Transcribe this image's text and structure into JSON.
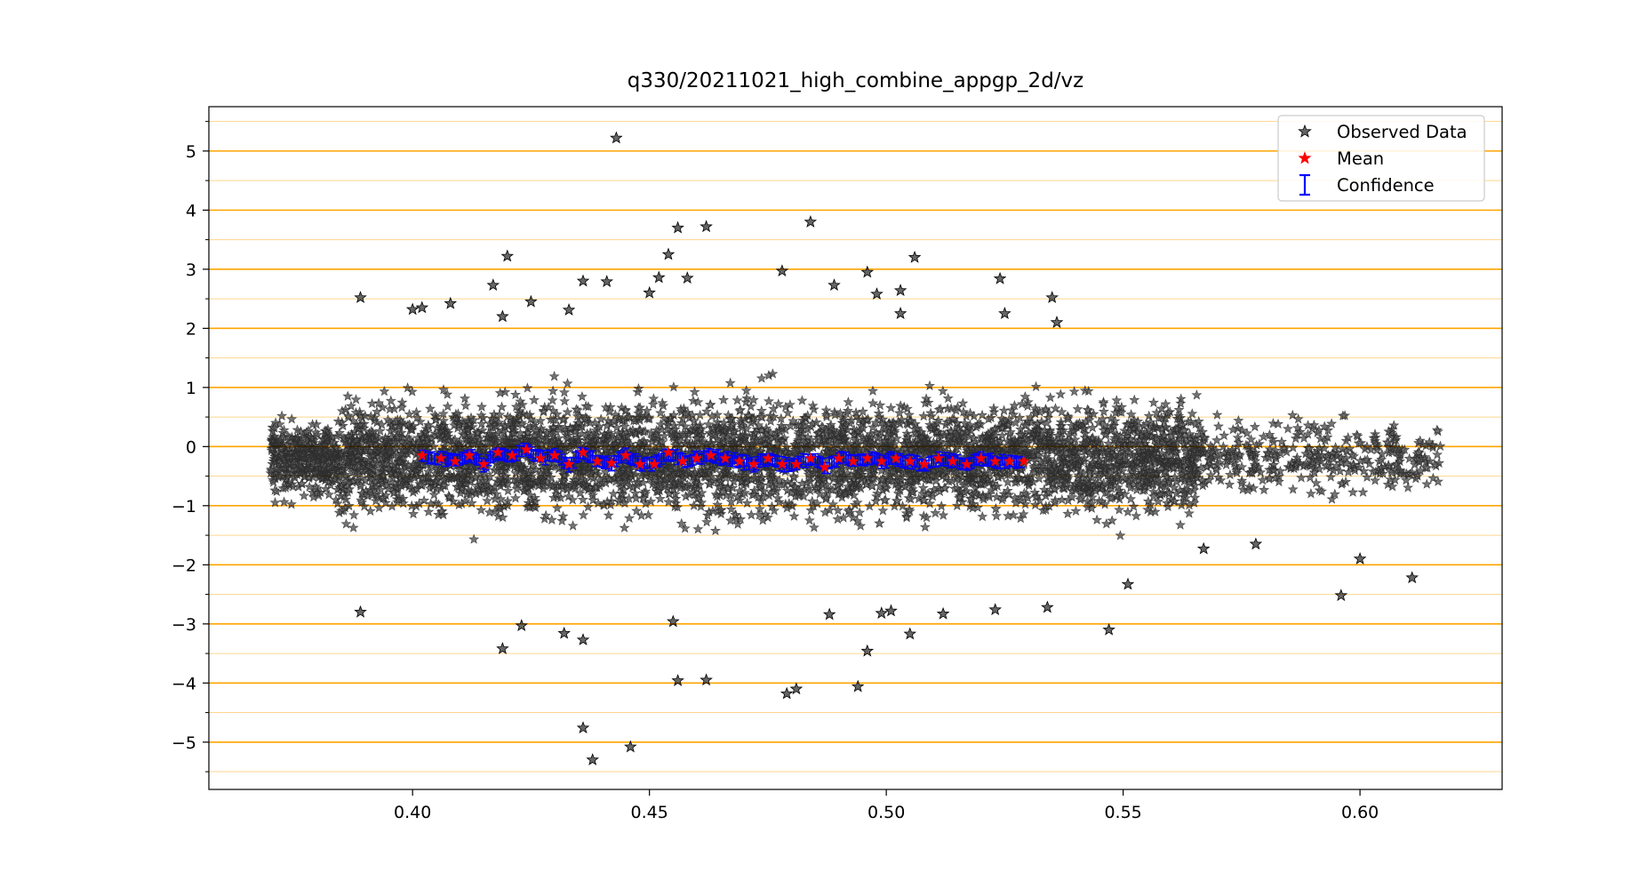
{
  "chart_data": {
    "type": "scatter",
    "title": "q330/20211021_high_combine_appgp_2d/vz",
    "xlabel": "",
    "ylabel": "",
    "xlim": [
      0.357,
      0.63
    ],
    "ylim": [
      -5.8,
      5.75
    ],
    "x_ticks": [
      "0.40",
      "0.45",
      "0.50",
      "0.55",
      "0.60"
    ],
    "x_tick_values": [
      0.4,
      0.45,
      0.5,
      0.55,
      0.6
    ],
    "y_ticks": [
      "5",
      "4",
      "3",
      "2",
      "1",
      "0",
      "−1",
      "−2",
      "−3",
      "−4",
      "−5"
    ],
    "y_tick_values": [
      5,
      4,
      3,
      2,
      1,
      0,
      -1,
      -2,
      -3,
      -4,
      -5
    ],
    "y_minor_values": [
      5.5,
      4.5,
      3.5,
      2.5,
      1.5,
      0.5,
      -0.5,
      -1.5,
      -2.5,
      -3.5,
      -4.5,
      -5.5
    ],
    "grid": "horizontal",
    "grid_color": "#ffa500",
    "legend": {
      "placement": "top-right",
      "entries": [
        "Observed Data",
        "Mean",
        "Confidence"
      ]
    },
    "colors": {
      "observed": "#000000",
      "mean": "#ff0000",
      "confidence": "#0000ff"
    },
    "series": [
      {
        "name": "Observed Data",
        "description_of_distribution": "dense band centered on 0 from x≈0.37 to x≈0.617",
        "outliers": [
          [
            0.443,
            5.22
          ],
          [
            0.484,
            3.8
          ],
          [
            0.456,
            3.7
          ],
          [
            0.462,
            3.72
          ],
          [
            0.454,
            3.25
          ],
          [
            0.42,
            3.22
          ],
          [
            0.506,
            3.2
          ],
          [
            0.478,
            2.97
          ],
          [
            0.496,
            2.95
          ],
          [
            0.524,
            2.84
          ],
          [
            0.389,
            2.52
          ],
          [
            0.535,
            2.52
          ],
          [
            0.436,
            2.8
          ],
          [
            0.441,
            2.79
          ],
          [
            0.417,
            2.73
          ],
          [
            0.452,
            2.86
          ],
          [
            0.458,
            2.85
          ],
          [
            0.489,
            2.73
          ],
          [
            0.503,
            2.64
          ],
          [
            0.498,
            2.58
          ],
          [
            0.45,
            2.6
          ],
          [
            0.408,
            2.42
          ],
          [
            0.402,
            2.35
          ],
          [
            0.4,
            2.32
          ],
          [
            0.425,
            2.45
          ],
          [
            0.433,
            2.31
          ],
          [
            0.525,
            2.25
          ],
          [
            0.503,
            2.25
          ],
          [
            0.536,
            2.1
          ],
          [
            0.419,
            2.2
          ],
          [
            0.436,
            -4.76
          ],
          [
            0.438,
            -5.3
          ],
          [
            0.446,
            -5.08
          ],
          [
            0.479,
            -4.18
          ],
          [
            0.481,
            -4.1
          ],
          [
            0.494,
            -4.06
          ],
          [
            0.456,
            -3.96
          ],
          [
            0.462,
            -3.95
          ],
          [
            0.496,
            -3.46
          ],
          [
            0.419,
            -3.42
          ],
          [
            0.432,
            -3.16
          ],
          [
            0.436,
            -3.27
          ],
          [
            0.505,
            -3.17
          ],
          [
            0.547,
            -3.1
          ],
          [
            0.389,
            -2.8
          ],
          [
            0.455,
            -2.96
          ],
          [
            0.423,
            -3.03
          ],
          [
            0.499,
            -2.82
          ],
          [
            0.488,
            -2.84
          ],
          [
            0.501,
            -2.78
          ],
          [
            0.512,
            -2.83
          ],
          [
            0.523,
            -2.76
          ],
          [
            0.534,
            -2.72
          ],
          [
            0.596,
            -2.52
          ],
          [
            0.611,
            -2.22
          ],
          [
            0.6,
            -1.9
          ],
          [
            0.578,
            -1.65
          ],
          [
            0.567,
            -1.73
          ],
          [
            0.551,
            -2.33
          ]
        ]
      },
      {
        "name": "Mean",
        "points": [
          [
            0.402,
            -0.15
          ],
          [
            0.406,
            -0.2
          ],
          [
            0.409,
            -0.25
          ],
          [
            0.412,
            -0.15
          ],
          [
            0.415,
            -0.3
          ],
          [
            0.418,
            -0.1
          ],
          [
            0.421,
            -0.15
          ],
          [
            0.424,
            -0.05
          ],
          [
            0.427,
            -0.2
          ],
          [
            0.43,
            -0.15
          ],
          [
            0.433,
            -0.3
          ],
          [
            0.436,
            -0.1
          ],
          [
            0.439,
            -0.25
          ],
          [
            0.442,
            -0.28
          ],
          [
            0.445,
            -0.15
          ],
          [
            0.448,
            -0.3
          ],
          [
            0.451,
            -0.3
          ],
          [
            0.454,
            -0.1
          ],
          [
            0.457,
            -0.25
          ],
          [
            0.46,
            -0.2
          ],
          [
            0.463,
            -0.15
          ],
          [
            0.466,
            -0.2
          ],
          [
            0.469,
            -0.25
          ],
          [
            0.472,
            -0.3
          ],
          [
            0.475,
            -0.2
          ],
          [
            0.478,
            -0.3
          ],
          [
            0.481,
            -0.3
          ],
          [
            0.484,
            -0.2
          ],
          [
            0.487,
            -0.35
          ],
          [
            0.49,
            -0.2
          ],
          [
            0.493,
            -0.25
          ],
          [
            0.496,
            -0.2
          ],
          [
            0.499,
            -0.25
          ],
          [
            0.502,
            -0.2
          ],
          [
            0.505,
            -0.25
          ],
          [
            0.508,
            -0.3
          ],
          [
            0.511,
            -0.2
          ],
          [
            0.514,
            -0.25
          ],
          [
            0.517,
            -0.3
          ],
          [
            0.52,
            -0.2
          ],
          [
            0.523,
            -0.25
          ],
          [
            0.526,
            -0.25
          ],
          [
            0.529,
            -0.25
          ]
        ]
      },
      {
        "name": "Confidence",
        "half_width": 0.09
      }
    ]
  }
}
